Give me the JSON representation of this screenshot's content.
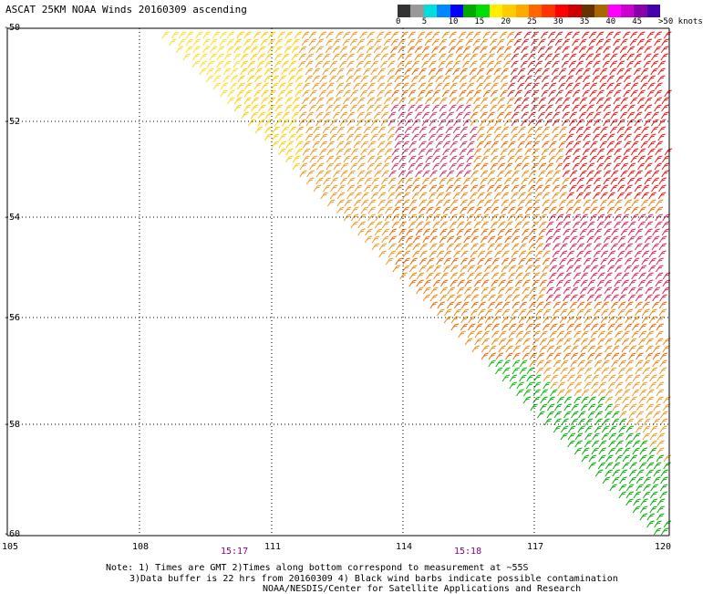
{
  "title": "ASCAT 25KM NOAA Winds 20160309 ascending",
  "colorbar": {
    "labels": [
      "0",
      "5",
      "10",
      "15",
      "20",
      "25",
      "30",
      "35",
      "40",
      "45",
      ">50 knots"
    ],
    "colors": [
      "#333333",
      "#999999",
      "#00dddd",
      "#0088ff",
      "#0000ff",
      "#00aa00",
      "#00dd00",
      "#ffee00",
      "#ffcc00",
      "#ffaa00",
      "#ff6600",
      "#ff3300",
      "#ff0000",
      "#cc0000",
      "#663300",
      "#aa6600",
      "#ff00ff",
      "#cc00cc",
      "#8800aa",
      "#4400aa"
    ]
  },
  "axes": {
    "lat_labels": [
      "-50",
      "-52",
      "-54",
      "-56",
      "-58",
      "-60"
    ],
    "lon_labels": [
      "105",
      "108",
      "111",
      "114",
      "117",
      "120"
    ]
  },
  "pass_times": [
    "15:17",
    "15:18"
  ],
  "notes": {
    "line1": "Note: 1) Times are GMT 2)Times along bottom correspond to measurement at ~55S",
    "line2": "3)Data buffer is 22 hrs from 20160309 4) Black wind barbs indicate possible contamination",
    "line3": "NOAA/NESDIS/Center for Satellite Applications and Research"
  }
}
